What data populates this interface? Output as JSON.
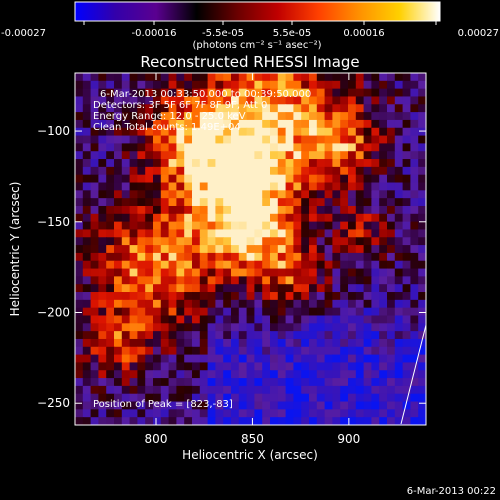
{
  "colorbar": {
    "ticks": [
      "-0.00027",
      "-0.00016",
      "-5.5e-05",
      "5.5e-05",
      "0.00016",
      "0.00027"
    ],
    "units": "(photons cm⁻² s⁻¹ asec⁻²)",
    "colors": [
      "#0000ff",
      "#3300aa",
      "#5a0090",
      "#000000",
      "#6a0000",
      "#c00000",
      "#ff4000",
      "#ff9000",
      "#ffd000",
      "#ffffff"
    ]
  },
  "chart_data": {
    "type": "heatmap",
    "title": "Reconstructed RHESSI Image",
    "xlabel": "Heliocentric X (arcsec)",
    "ylabel": "Heliocentric Y (arcsec)",
    "xlim": [
      758,
      940
    ],
    "ylim": [
      -262,
      -68
    ],
    "xticks": [
      800,
      850,
      900
    ],
    "yticks": [
      -100,
      -150,
      -200,
      -250
    ],
    "annotations": [
      "6-Mar-2013 00:33:50.000 to 00:39:50.000",
      "Detectors: 3F 5F 6F 7F 8F 9F, Att 0",
      "Energy Range: 12.0 - 25.0 keV",
      "Clean     Total counts: 1.49E+04"
    ],
    "peak_label": "Position of Peak = [823,-83]",
    "peak": [
      823,
      -83
    ]
  },
  "footer": {
    "timestamp": "6-Mar-2013 00:22"
  }
}
